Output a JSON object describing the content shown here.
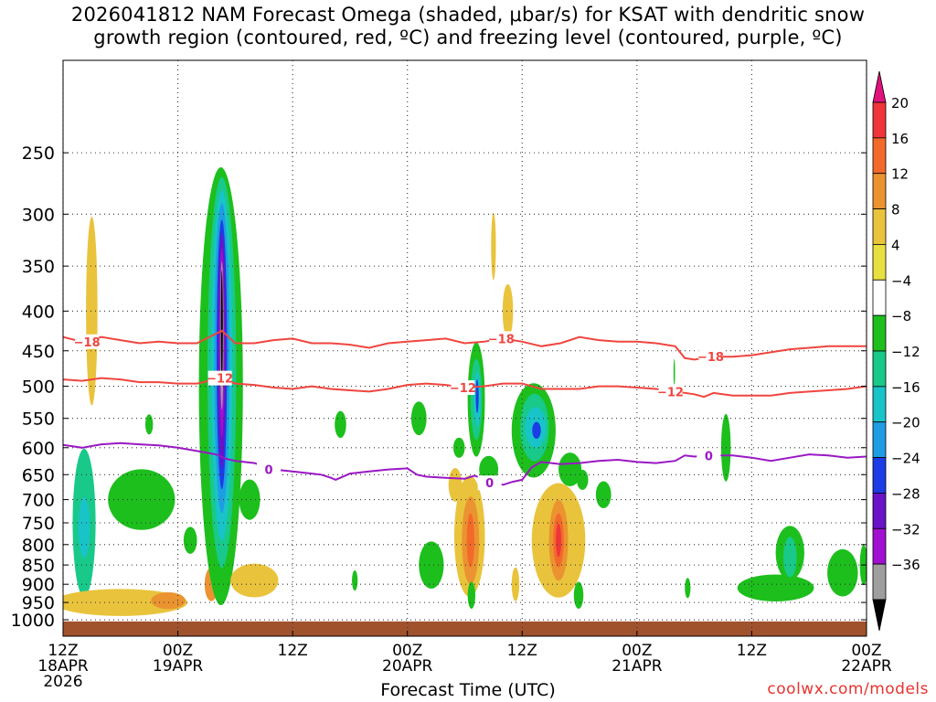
{
  "title": {
    "line1": "2026041812 NAM Forecast Omega (shaded, μbar/s) for KSAT with dendritic snow",
    "line2": "growth region (contoured, red, ºC) and freezing level (contoured, purple, ºC)"
  },
  "credit": "coolwx.com/models",
  "chart_data": {
    "type": "heatmap",
    "xlabel": "Forecast Time (UTC)",
    "ylabel": "",
    "x_range_hours": [
      0,
      84
    ],
    "x_ticks": [
      {
        "hour": 0,
        "label1": "12Z",
        "label2": "18APR",
        "label3": "2026"
      },
      {
        "hour": 12,
        "label1": "00Z",
        "label2": "19APR",
        "label3": ""
      },
      {
        "hour": 24,
        "label1": "12Z",
        "label2": "",
        "label3": ""
      },
      {
        "hour": 36,
        "label1": "00Z",
        "label2": "20APR",
        "label3": ""
      },
      {
        "hour": 48,
        "label1": "12Z",
        "label2": "",
        "label3": ""
      },
      {
        "hour": 60,
        "label1": "00Z",
        "label2": "21APR",
        "label3": ""
      },
      {
        "hour": 72,
        "label1": "12Z",
        "label2": "",
        "label3": ""
      },
      {
        "hour": 84,
        "label1": "00Z",
        "label2": "22APR",
        "label3": ""
      }
    ],
    "y_axis": "pressure (log, inverted)",
    "y_range_mb": [
      1050,
      190
    ],
    "y_ticks": [
      250,
      300,
      350,
      400,
      450,
      500,
      550,
      600,
      650,
      700,
      750,
      800,
      850,
      900,
      950,
      1000
    ],
    "grid": true,
    "colorbar": {
      "labels": [
        "20",
        "16",
        "12",
        "8",
        "4",
        "−4",
        "−8",
        "−12",
        "−16",
        "−20",
        "−24",
        "−28",
        "−32",
        "−36"
      ],
      "colors": [
        "#e0127b",
        "#f0353a",
        "#f26a2a",
        "#eb9330",
        "#e9c33c",
        "#e8e040",
        "#ffffff",
        "#1dbf1d",
        "#18c98a",
        "#18c4c8",
        "#1e9de3",
        "#1c3ce6",
        "#6a12c8",
        "#a10fd0",
        "#9e9e9e",
        "#000000"
      ]
    },
    "omega_features": [
      {
        "hour": 2.2,
        "p": 750,
        "dh": 1.2,
        "dlogp": 0.22,
        "level": "neg8"
      },
      {
        "hour": 2.2,
        "p": 760,
        "dh": 0.6,
        "dlogp": 0.09,
        "level": "neg12"
      },
      {
        "hour": 3.0,
        "p": 400,
        "dh": 0.6,
        "dlogp": 0.28,
        "level": "pos4"
      },
      {
        "hour": 8.2,
        "p": 700,
        "dh": 3.5,
        "dlogp": 0.09,
        "level": "neg4"
      },
      {
        "hour": 9.0,
        "p": 560,
        "dh": 0.4,
        "dlogp": 0.03,
        "level": "neg4"
      },
      {
        "hour": 6.0,
        "p": 950,
        "dh": 7.0,
        "dlogp": 0.04,
        "level": "pos4"
      },
      {
        "hour": 11.0,
        "p": 945,
        "dh": 1.8,
        "dlogp": 0.025,
        "level": "pos8"
      },
      {
        "hour": 15.5,
        "p": 900,
        "dh": 0.7,
        "dlogp": 0.05,
        "level": "pos8"
      },
      {
        "hour": 13.3,
        "p": 790,
        "dh": 0.7,
        "dlogp": 0.04,
        "level": "neg4"
      },
      {
        "hour": 16.5,
        "p": 500,
        "dh": 2.3,
        "dlogp": 0.65,
        "level": "neg4"
      },
      {
        "hour": 16.6,
        "p": 480,
        "dh": 1.5,
        "dlogp": 0.58,
        "level": "neg8"
      },
      {
        "hour": 16.6,
        "p": 470,
        "dh": 1.1,
        "dlogp": 0.52,
        "level": "neg12"
      },
      {
        "hour": 16.6,
        "p": 460,
        "dh": 0.8,
        "dlogp": 0.46,
        "level": "neg16"
      },
      {
        "hour": 16.6,
        "p": 455,
        "dh": 0.55,
        "dlogp": 0.4,
        "level": "neg20"
      },
      {
        "hour": 16.6,
        "p": 450,
        "dh": 0.4,
        "dlogp": 0.35,
        "level": "neg24"
      },
      {
        "hour": 16.6,
        "p": 440,
        "dh": 0.28,
        "dlogp": 0.28,
        "level": "neg28"
      },
      {
        "hour": 16.6,
        "p": 430,
        "dh": 0.18,
        "dlogp": 0.22,
        "level": "neg32"
      },
      {
        "hour": 16.6,
        "p": 420,
        "dh": 0.1,
        "dlogp": 0.17,
        "level": "neg36"
      },
      {
        "hour": 19.5,
        "p": 700,
        "dh": 1.1,
        "dlogp": 0.06,
        "level": "neg4"
      },
      {
        "hour": 20.0,
        "p": 890,
        "dh": 2.5,
        "dlogp": 0.05,
        "level": "pos4"
      },
      {
        "hour": 29.0,
        "p": 560,
        "dh": 0.6,
        "dlogp": 0.04,
        "level": "neg4"
      },
      {
        "hour": 37.2,
        "p": 550,
        "dh": 0.8,
        "dlogp": 0.05,
        "level": "neg4"
      },
      {
        "hour": 38.5,
        "p": 850,
        "dh": 1.3,
        "dlogp": 0.07,
        "level": "neg4"
      },
      {
        "hour": 41.0,
        "p": 670,
        "dh": 0.7,
        "dlogp": 0.05,
        "level": "pos4"
      },
      {
        "hour": 41.4,
        "p": 600,
        "dh": 0.6,
        "dlogp": 0.03,
        "level": "neg4"
      },
      {
        "hour": 42.5,
        "p": 780,
        "dh": 1.6,
        "dlogp": 0.18,
        "level": "pos4"
      },
      {
        "hour": 42.6,
        "p": 790,
        "dh": 0.9,
        "dlogp": 0.13,
        "level": "pos8"
      },
      {
        "hour": 42.6,
        "p": 790,
        "dh": 0.4,
        "dlogp": 0.08,
        "level": "pos12"
      },
      {
        "hour": 42.7,
        "p": 930,
        "dh": 0.4,
        "dlogp": 0.04,
        "level": "neg4"
      },
      {
        "hour": 43.2,
        "p": 520,
        "dh": 0.9,
        "dlogp": 0.17,
        "level": "neg4"
      },
      {
        "hour": 43.2,
        "p": 520,
        "dh": 0.6,
        "dlogp": 0.12,
        "level": "neg8"
      },
      {
        "hour": 43.3,
        "p": 520,
        "dh": 0.35,
        "dlogp": 0.08,
        "level": "neg12"
      },
      {
        "hour": 43.3,
        "p": 515,
        "dh": 0.15,
        "dlogp": 0.05,
        "level": "neg20"
      },
      {
        "hour": 44.5,
        "p": 640,
        "dh": 1.0,
        "dlogp": 0.04,
        "level": "neg4"
      },
      {
        "hour": 45.0,
        "p": 330,
        "dh": 0.25,
        "dlogp": 0.1,
        "level": "pos4"
      },
      {
        "hour": 46.5,
        "p": 400,
        "dh": 0.55,
        "dlogp": 0.08,
        "level": "pos4"
      },
      {
        "hour": 47.3,
        "p": 900,
        "dh": 0.4,
        "dlogp": 0.05,
        "level": "pos4"
      },
      {
        "hour": 49.2,
        "p": 570,
        "dh": 2.3,
        "dlogp": 0.14,
        "level": "neg4"
      },
      {
        "hour": 49.3,
        "p": 565,
        "dh": 1.5,
        "dlogp": 0.1,
        "level": "neg8"
      },
      {
        "hour": 49.4,
        "p": 565,
        "dh": 1.1,
        "dlogp": 0.06,
        "level": "neg12"
      },
      {
        "hour": 49.5,
        "p": 570,
        "dh": 0.45,
        "dlogp": 0.025,
        "level": "neg20"
      },
      {
        "hour": 51.8,
        "p": 790,
        "dh": 2.8,
        "dlogp": 0.17,
        "level": "pos4"
      },
      {
        "hour": 51.8,
        "p": 790,
        "dh": 1.0,
        "dlogp": 0.12,
        "level": "pos8"
      },
      {
        "hour": 51.8,
        "p": 790,
        "dh": 0.55,
        "dlogp": 0.08,
        "level": "pos12"
      },
      {
        "hour": 51.8,
        "p": 790,
        "dh": 0.28,
        "dlogp": 0.05,
        "level": "pos16"
      },
      {
        "hour": 53.0,
        "p": 640,
        "dh": 1.2,
        "dlogp": 0.05,
        "level": "neg4"
      },
      {
        "hour": 54.3,
        "p": 660,
        "dh": 0.6,
        "dlogp": 0.03,
        "level": "neg4"
      },
      {
        "hour": 53.9,
        "p": 930,
        "dh": 0.5,
        "dlogp": 0.04,
        "level": "neg4"
      },
      {
        "hour": 56.5,
        "p": 690,
        "dh": 0.8,
        "dlogp": 0.04,
        "level": "neg4"
      },
      {
        "hour": 63.9,
        "p": 480,
        "dh": 0.08,
        "dlogp": 0.04,
        "level": "neg4"
      },
      {
        "hour": 65.3,
        "p": 910,
        "dh": 0.3,
        "dlogp": 0.03,
        "level": "neg4"
      },
      {
        "hour": 69.3,
        "p": 600,
        "dh": 0.5,
        "dlogp": 0.1,
        "level": "neg4"
      },
      {
        "hour": 74.5,
        "p": 910,
        "dh": 4.0,
        "dlogp": 0.04,
        "level": "neg4"
      },
      {
        "hour": 76.0,
        "p": 820,
        "dh": 1.5,
        "dlogp": 0.08,
        "level": "neg4"
      },
      {
        "hour": 76.0,
        "p": 830,
        "dh": 0.7,
        "dlogp": 0.06,
        "level": "neg8"
      },
      {
        "hour": 81.5,
        "p": 870,
        "dh": 1.6,
        "dlogp": 0.07,
        "level": "neg4"
      },
      {
        "hour": 83.7,
        "p": 850,
        "dh": 0.4,
        "dlogp": 0.06,
        "level": "neg4"
      },
      {
        "hour": 30.5,
        "p": 890,
        "dh": 0.3,
        "dlogp": 0.03,
        "level": "neg4"
      }
    ],
    "contours": [
      {
        "name": "-18",
        "color": "#f0453f",
        "kind": "dendritic",
        "label": "−18",
        "label_hours": [
          2.5,
          45.8,
          67.7
        ],
        "points": [
          [
            0,
            432
          ],
          [
            2,
            438
          ],
          [
            4,
            432
          ],
          [
            6,
            436
          ],
          [
            8,
            440
          ],
          [
            10,
            438
          ],
          [
            12,
            440
          ],
          [
            14,
            440
          ],
          [
            16.6,
            424
          ],
          [
            18,
            440
          ],
          [
            20,
            440
          ],
          [
            22,
            436
          ],
          [
            24,
            434
          ],
          [
            26,
            440
          ],
          [
            28,
            440
          ],
          [
            30,
            442
          ],
          [
            32,
            446
          ],
          [
            34,
            440
          ],
          [
            36,
            438
          ],
          [
            38,
            436
          ],
          [
            40,
            434
          ],
          [
            42,
            440
          ],
          [
            44,
            438
          ],
          [
            46,
            434
          ],
          [
            48,
            438
          ],
          [
            50,
            444
          ],
          [
            52,
            440
          ],
          [
            54,
            432
          ],
          [
            56,
            436
          ],
          [
            58,
            438
          ],
          [
            60,
            438
          ],
          [
            62,
            440
          ],
          [
            64,
            444
          ],
          [
            65,
            460
          ],
          [
            66,
            462
          ],
          [
            68,
            458
          ],
          [
            70,
            458
          ],
          [
            72,
            456
          ],
          [
            74,
            452
          ],
          [
            76,
            448
          ],
          [
            78,
            446
          ],
          [
            80,
            444
          ],
          [
            82,
            444
          ],
          [
            84,
            444
          ]
        ]
      },
      {
        "name": "-12",
        "color": "#f0453f",
        "kind": "dendritic",
        "label": "−12",
        "label_hours": [
          16.4,
          41.8,
          63.5
        ],
        "points": [
          [
            0,
            490
          ],
          [
            2,
            492
          ],
          [
            4,
            488
          ],
          [
            6,
            490
          ],
          [
            8,
            494
          ],
          [
            10,
            494
          ],
          [
            12,
            496
          ],
          [
            14,
            496
          ],
          [
            16.6,
            488
          ],
          [
            18,
            496
          ],
          [
            20,
            498
          ],
          [
            22,
            502
          ],
          [
            24,
            504
          ],
          [
            26,
            500
          ],
          [
            28,
            504
          ],
          [
            30,
            506
          ],
          [
            32,
            508
          ],
          [
            34,
            504
          ],
          [
            36,
            498
          ],
          [
            38,
            496
          ],
          [
            40,
            498
          ],
          [
            42,
            502
          ],
          [
            44,
            500
          ],
          [
            46,
            496
          ],
          [
            48,
            496
          ],
          [
            50,
            504
          ],
          [
            52,
            504
          ],
          [
            54,
            504
          ],
          [
            56,
            500
          ],
          [
            58,
            500
          ],
          [
            60,
            502
          ],
          [
            62,
            504
          ],
          [
            64,
            508
          ],
          [
            66,
            512
          ],
          [
            67,
            516
          ],
          [
            68,
            510
          ],
          [
            70,
            514
          ],
          [
            72,
            514
          ],
          [
            74,
            514
          ],
          [
            76,
            510
          ],
          [
            78,
            508
          ],
          [
            80,
            506
          ],
          [
            82,
            504
          ],
          [
            84,
            500
          ]
        ]
      },
      {
        "name": "0",
        "color": "#9a18c4",
        "kind": "freezing",
        "label": "0",
        "label_hours": [
          21.5,
          44.6,
          67.5
        ],
        "points": [
          [
            0,
            595
          ],
          [
            2,
            600
          ],
          [
            4,
            594
          ],
          [
            6,
            592
          ],
          [
            8,
            594
          ],
          [
            10,
            596
          ],
          [
            12,
            600
          ],
          [
            14,
            606
          ],
          [
            16,
            612
          ],
          [
            17,
            620
          ],
          [
            18,
            624
          ],
          [
            20,
            628
          ],
          [
            22,
            640
          ],
          [
            24,
            644
          ],
          [
            26,
            648
          ],
          [
            27,
            650
          ],
          [
            28,
            656
          ],
          [
            28.5,
            660
          ],
          [
            30,
            648
          ],
          [
            32,
            644
          ],
          [
            34,
            640
          ],
          [
            36,
            638
          ],
          [
            37,
            650
          ],
          [
            38,
            654
          ],
          [
            40,
            656
          ],
          [
            42,
            658
          ],
          [
            43,
            652
          ],
          [
            44,
            658
          ],
          [
            45,
            666
          ],
          [
            46,
            670
          ],
          [
            47,
            664
          ],
          [
            48,
            660
          ],
          [
            49,
            636
          ],
          [
            50,
            626
          ],
          [
            52,
            630
          ],
          [
            54,
            628
          ],
          [
            56,
            624
          ],
          [
            58,
            622
          ],
          [
            60,
            626
          ],
          [
            62,
            628
          ],
          [
            64,
            624
          ],
          [
            65,
            614
          ],
          [
            66,
            616
          ],
          [
            68,
            614
          ],
          [
            70,
            614
          ],
          [
            72,
            618
          ],
          [
            74,
            624
          ],
          [
            76,
            618
          ],
          [
            78,
            612
          ],
          [
            80,
            614
          ],
          [
            82,
            618
          ],
          [
            84,
            616
          ]
        ]
      }
    ],
    "ground_fill": {
      "color": "#a0522d",
      "p_top": 1005
    }
  }
}
